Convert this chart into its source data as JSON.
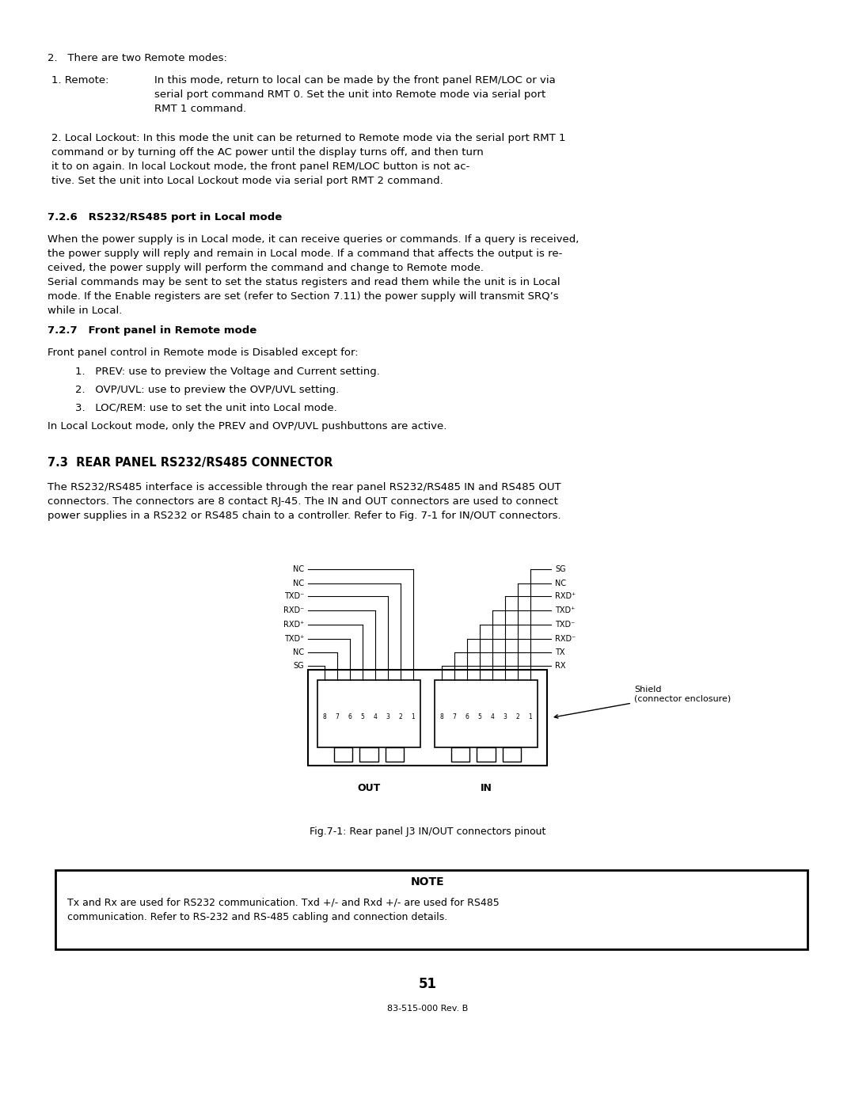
{
  "bg_color": "#ffffff",
  "text_color": "#000000",
  "page_number": "51",
  "footer": "83-515-000 Rev. B",
  "section_2_header": "2.   There are two Remote modes:",
  "remote_1_label": "1. Remote:",
  "remote_1_text": "In this mode, return to local can be made by the front panel REM/LOC or via\nserial port command RMT 0. Set the unit into Remote mode via serial port\nRMT 1 command.",
  "remote_2_label": "2. Local Lockout:",
  "remote_2_text": "In this mode the unit can be returned to Remote mode via the serial port RMT 1\ncommand or by turning off the AC power until the display turns off, and then turn\nit to on again. In local Lockout mode, the front panel REM/LOC button is not ac-\ntive. Set the unit into Local Lockout mode via serial port RMT 2 command.",
  "section_726_header": "7.2.6   RS232/RS485 port in Local mode",
  "section_726_text": "When the power supply is in Local mode, it can receive queries or commands. If a query is received,\nthe power supply will reply and remain in Local mode. If a command that affects the output is re-\nceived, the power supply will perform the command and change to Remote mode.\nSerial commands may be sent to set the status registers and read them while the unit is in Local\nmode. If the Enable registers are set (refer to Section 7.11) the power supply will transmit SRQ’s\nwhile in Local.",
  "section_727_header": "7.2.7   Front panel in Remote mode",
  "section_727_intro": "Front panel control in Remote mode is Disabled except for:",
  "section_727_list": [
    "1.   PREV: use to preview the Voltage and Current setting.",
    "2.   OVP/UVL: use to preview the OVP/UVL setting.",
    "3.   LOC/REM: use to set the unit into Local mode."
  ],
  "section_727_footer": "In Local Lockout mode, only the PREV and OVP/UVL pushbuttons are active.",
  "section_73_header": "7.3  REAR PANEL RS232/RS485 CONNECTOR",
  "section_73_text": "The RS232/RS485 interface is accessible through the rear panel RS232/RS485 IN and RS485 OUT\nconnectors. The connectors are 8 contact RJ-45. The IN and OUT connectors are used to connect\npower supplies in a RS232 or RS485 chain to a controller. Refer to Fig. 7-1 for IN/OUT connectors.",
  "fig_caption": "Fig.7-1: Rear panel J3 IN/OUT connectors pinout",
  "note_title": "NOTE",
  "note_text": "Tx and Rx are used for RS232 communication. Txd +/- and Rxd +/- are used for RS485\ncommunication. Refer to RS-232 and RS-485 cabling and connection details.",
  "left_labels": [
    "SG",
    "NC",
    "TXD⁺",
    "RXD⁺",
    "RXD⁻",
    "TXD⁻",
    "NC",
    "NC"
  ],
  "right_labels": [
    "RX",
    "TX",
    "RXD⁻",
    "TXD⁻",
    "TXD⁺",
    "RXD⁺",
    "NC",
    "SG"
  ],
  "connector_pins": "8 7 6 5 4 3 2 1",
  "out_label": "OUT",
  "in_label": "IN",
  "shield_label": "Shield\n(connector enclosure)"
}
